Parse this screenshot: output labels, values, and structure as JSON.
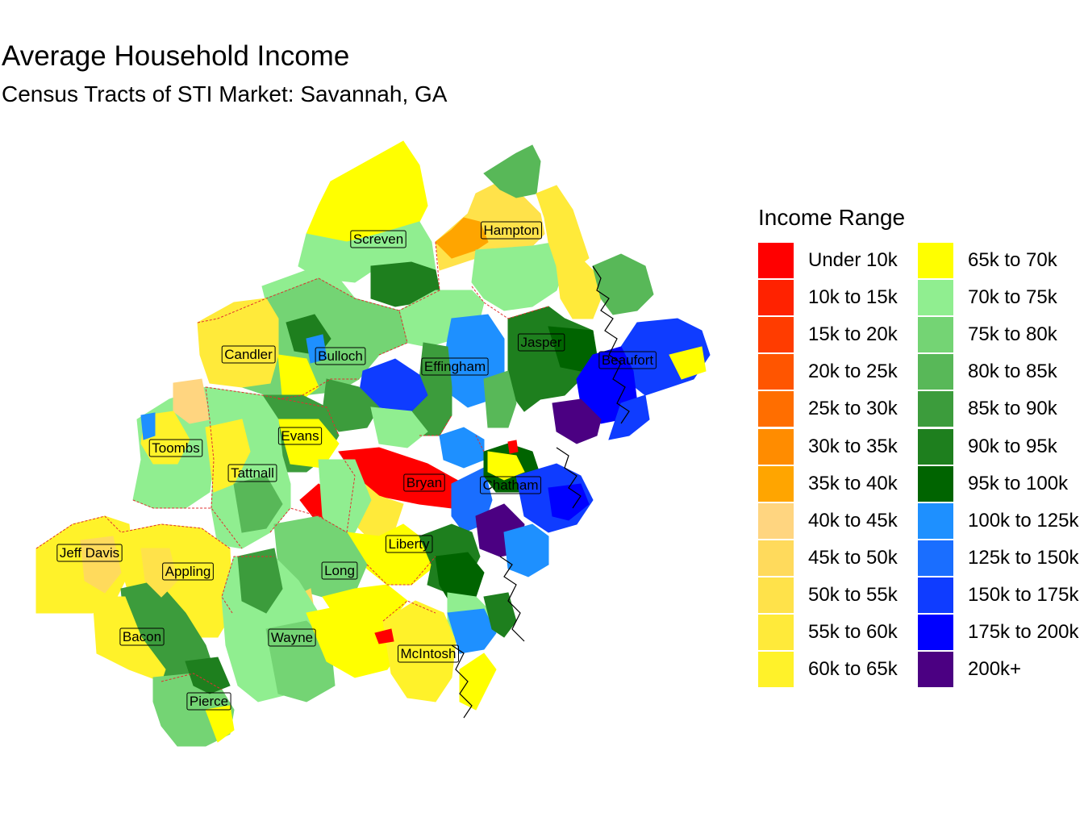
{
  "title": "Average Household Income",
  "subtitle": "Census Tracts of STI Market: Savannah, GA",
  "legend": {
    "title": "Income Range",
    "items": [
      {
        "label": "Under 10k",
        "color": "#FF0000"
      },
      {
        "label": "10k to 15k",
        "color": "#FF2200"
      },
      {
        "label": "15k to 20k",
        "color": "#FF3C00"
      },
      {
        "label": "20k to 25k",
        "color": "#FF5500"
      },
      {
        "label": "25k to 30k",
        "color": "#FF6E00"
      },
      {
        "label": "30k to 35k",
        "color": "#FF8C00"
      },
      {
        "label": "35k to 40k",
        "color": "#FFA500"
      },
      {
        "label": "40k to 45k",
        "color": "#FFD580"
      },
      {
        "label": "45k to 50k",
        "color": "#FFDA5C"
      },
      {
        "label": "50k to 55k",
        "color": "#FFE24A"
      },
      {
        "label": "55k to 60k",
        "color": "#FFEA3A"
      },
      {
        "label": "60k to 65k",
        "color": "#FFF22A"
      },
      {
        "label": "65k to 70k",
        "color": "#FFFF00"
      },
      {
        "label": "70k to 75k",
        "color": "#90EE90"
      },
      {
        "label": "75k to 80k",
        "color": "#74D474"
      },
      {
        "label": "80k to 85k",
        "color": "#58B858"
      },
      {
        "label": "85k to 90k",
        "color": "#3C9C3C"
      },
      {
        "label": "90k to 95k",
        "color": "#1E7F1E"
      },
      {
        "label": "95k to 100k",
        "color": "#006400"
      },
      {
        "label": "100k to 125k",
        "color": "#1E90FF"
      },
      {
        "label": "125k to 150k",
        "color": "#1A6EFF"
      },
      {
        "label": "150k to 175k",
        "color": "#0F3CFF"
      },
      {
        "label": "175k to 200k",
        "color": "#0000FF"
      },
      {
        "label": "200k+",
        "color": "#4B0082"
      }
    ]
  },
  "counties": [
    {
      "name": "Screven"
    },
    {
      "name": "Hampton"
    },
    {
      "name": "Jasper"
    },
    {
      "name": "Beaufort"
    },
    {
      "name": "Candler"
    },
    {
      "name": "Bulloch"
    },
    {
      "name": "Effingham"
    },
    {
      "name": "Evans"
    },
    {
      "name": "Toombs"
    },
    {
      "name": "Tattnall"
    },
    {
      "name": "Bryan"
    },
    {
      "name": "Chatham"
    },
    {
      "name": "Jeff Davis"
    },
    {
      "name": "Appling"
    },
    {
      "name": "Long"
    },
    {
      "name": "Liberty"
    },
    {
      "name": "Bacon"
    },
    {
      "name": "Wayne"
    },
    {
      "name": "McIntosh"
    },
    {
      "name": "Pierce"
    }
  ]
}
